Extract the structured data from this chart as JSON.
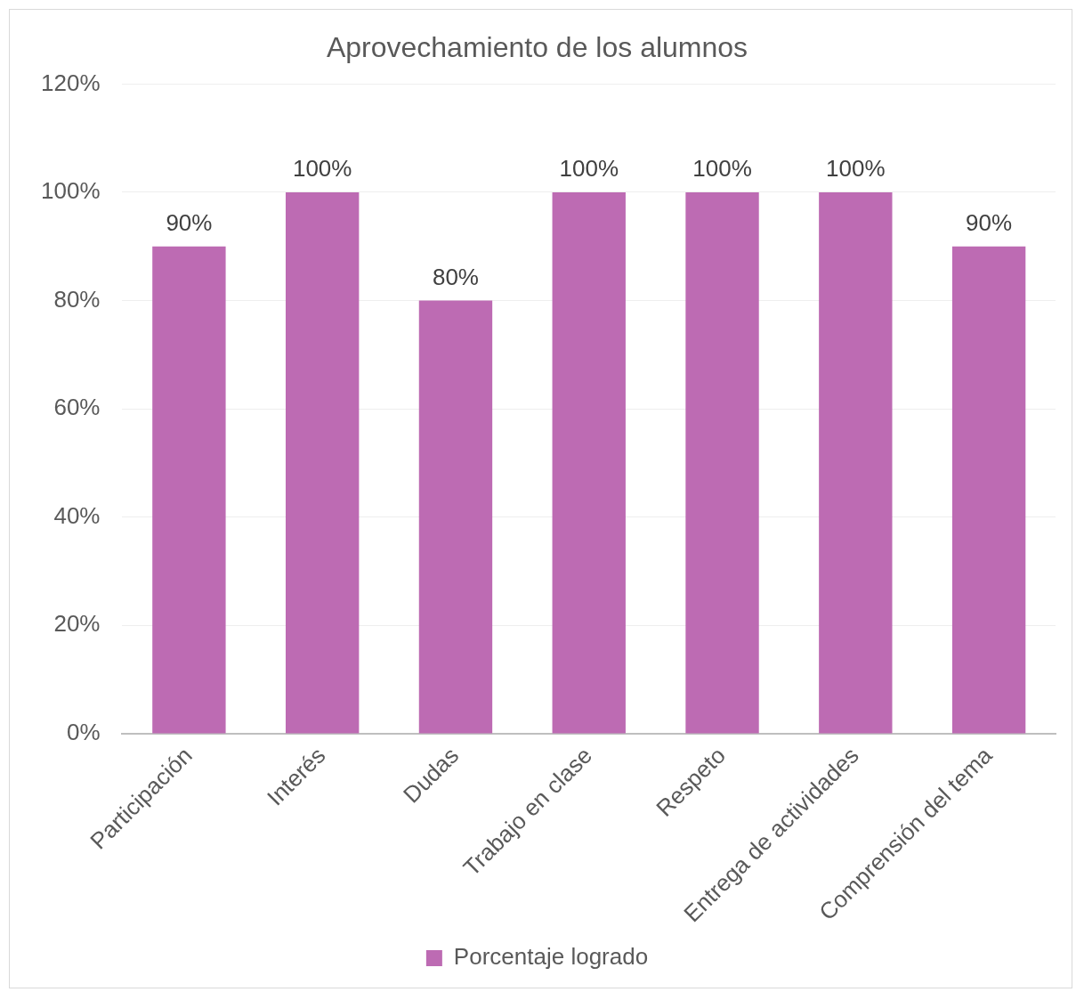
{
  "chart_data": {
    "type": "bar",
    "title": "Aprovechamiento de los alumnos",
    "categories": [
      "Participación",
      "Interés",
      "Dudas",
      "Trabajo en clase",
      "Respeto",
      "Entrega de actividades",
      "Comprensión del tema"
    ],
    "series": [
      {
        "name": "Porcentaje logrado",
        "color": "#bd6bb3",
        "values": [
          90,
          100,
          80,
          100,
          100,
          100,
          90
        ],
        "value_labels": [
          "90%",
          "100%",
          "80%",
          "100%",
          "100%",
          "100%",
          "90%"
        ]
      }
    ],
    "ylim": [
      0,
      120
    ],
    "yticks": [
      {
        "value": 0,
        "label": "0%"
      },
      {
        "value": 20,
        "label": "20%"
      },
      {
        "value": 40,
        "label": "40%"
      },
      {
        "value": 60,
        "label": "60%"
      },
      {
        "value": 80,
        "label": "80%"
      },
      {
        "value": 100,
        "label": "100%"
      },
      {
        "value": 120,
        "label": "120%"
      }
    ],
    "grid": "y",
    "legend": "bottom"
  }
}
